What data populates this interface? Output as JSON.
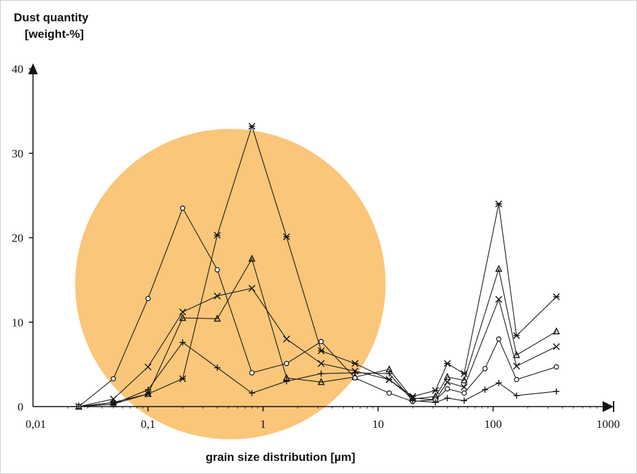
{
  "chart_data": {
    "type": "line",
    "ylabel_line1": "Dust quantity",
    "ylabel_line2": "[weight-%]",
    "xlabel": "grain size distribution [µm]",
    "x_scale": "log",
    "xlim": [
      0.01,
      1000
    ],
    "ylim": [
      0,
      40
    ],
    "x_ticks": [
      "0,01",
      "0,1",
      "1",
      "10",
      "100",
      "1000"
    ],
    "y_ticks": [
      "0",
      "10",
      "20",
      "30",
      "40"
    ],
    "grid": false,
    "highlight": {
      "shape": "circle",
      "color": "#F9BE67",
      "center": [
        0.52,
        14.5
      ],
      "x_span": [
        0.027,
        13.5
      ]
    },
    "series": [
      {
        "marker": "asterisk",
        "points": [
          [
            0.025,
            0
          ],
          [
            0.05,
            0.3
          ],
          [
            0.1,
            1.5
          ],
          [
            0.2,
            3.3
          ],
          [
            0.4,
            20.3
          ],
          [
            0.8,
            33.2
          ],
          [
            1.6,
            20.1
          ],
          [
            3.2,
            6.6
          ],
          [
            6.3,
            5.1
          ],
          [
            12.5,
            3.2
          ],
          [
            20,
            1.2
          ],
          [
            31.5,
            1.9
          ],
          [
            40,
            5.1
          ],
          [
            56,
            3.9
          ],
          [
            112,
            24
          ],
          [
            160,
            8.4
          ],
          [
            355,
            13
          ]
        ]
      },
      {
        "marker": "triangle",
        "points": [
          [
            0.025,
            0
          ],
          [
            0.05,
            0.5
          ],
          [
            0.1,
            1.5
          ],
          [
            0.2,
            10.5
          ],
          [
            0.4,
            10.4
          ],
          [
            0.8,
            17.5
          ],
          [
            1.6,
            3.4
          ],
          [
            3.2,
            2.9
          ],
          [
            6.3,
            3.5
          ],
          [
            12.5,
            4.4
          ],
          [
            20,
            0.9
          ],
          [
            31.5,
            1.2
          ],
          [
            40,
            3.5
          ],
          [
            56,
            3.1
          ],
          [
            112,
            16.3
          ],
          [
            160,
            6.1
          ],
          [
            355,
            8.9
          ]
        ]
      },
      {
        "marker": "x",
        "points": [
          [
            0.025,
            0
          ],
          [
            0.05,
            0.9
          ],
          [
            0.1,
            4.7
          ],
          [
            0.2,
            11.2
          ],
          [
            0.4,
            13.1
          ],
          [
            0.8,
            14.0
          ],
          [
            1.6,
            8.0
          ],
          [
            3.2,
            5.1
          ],
          [
            6.3,
            4.2
          ],
          [
            12.5,
            3.2
          ],
          [
            20,
            1.0
          ],
          [
            31.5,
            0.8
          ],
          [
            40,
            2.9
          ],
          [
            56,
            2.3
          ],
          [
            112,
            12.7
          ],
          [
            160,
            4.8
          ],
          [
            355,
            7.1
          ]
        ]
      },
      {
        "marker": "circle",
        "points": [
          [
            0.025,
            0
          ],
          [
            0.05,
            3.3
          ],
          [
            0.1,
            12.8
          ],
          [
            0.2,
            23.5
          ],
          [
            0.4,
            16.2
          ],
          [
            0.8,
            4.0
          ],
          [
            1.6,
            5.1
          ],
          [
            3.2,
            7.7
          ],
          [
            6.3,
            3.4
          ],
          [
            12.5,
            1.6
          ],
          [
            20,
            0.6
          ],
          [
            31.5,
            0.8
          ],
          [
            40,
            2.1
          ],
          [
            56,
            1.6
          ],
          [
            85,
            4.5
          ],
          [
            112,
            8.0
          ],
          [
            160,
            3.2
          ],
          [
            355,
            4.7
          ]
        ]
      },
      {
        "marker": "plus",
        "points": [
          [
            0.025,
            0
          ],
          [
            0.05,
            0.3
          ],
          [
            0.1,
            2.0
          ],
          [
            0.2,
            7.6
          ],
          [
            0.4,
            4.6
          ],
          [
            0.8,
            1.6
          ],
          [
            1.6,
            3.0
          ],
          [
            3.2,
            3.9
          ],
          [
            6.3,
            4.0
          ],
          [
            12.5,
            3.9
          ],
          [
            20,
            0.7
          ],
          [
            31.5,
            0.5
          ],
          [
            40,
            1.0
          ],
          [
            56,
            0.7
          ],
          [
            85,
            2.0
          ],
          [
            112,
            2.8
          ],
          [
            160,
            1.3
          ],
          [
            355,
            1.8
          ]
        ]
      }
    ]
  }
}
